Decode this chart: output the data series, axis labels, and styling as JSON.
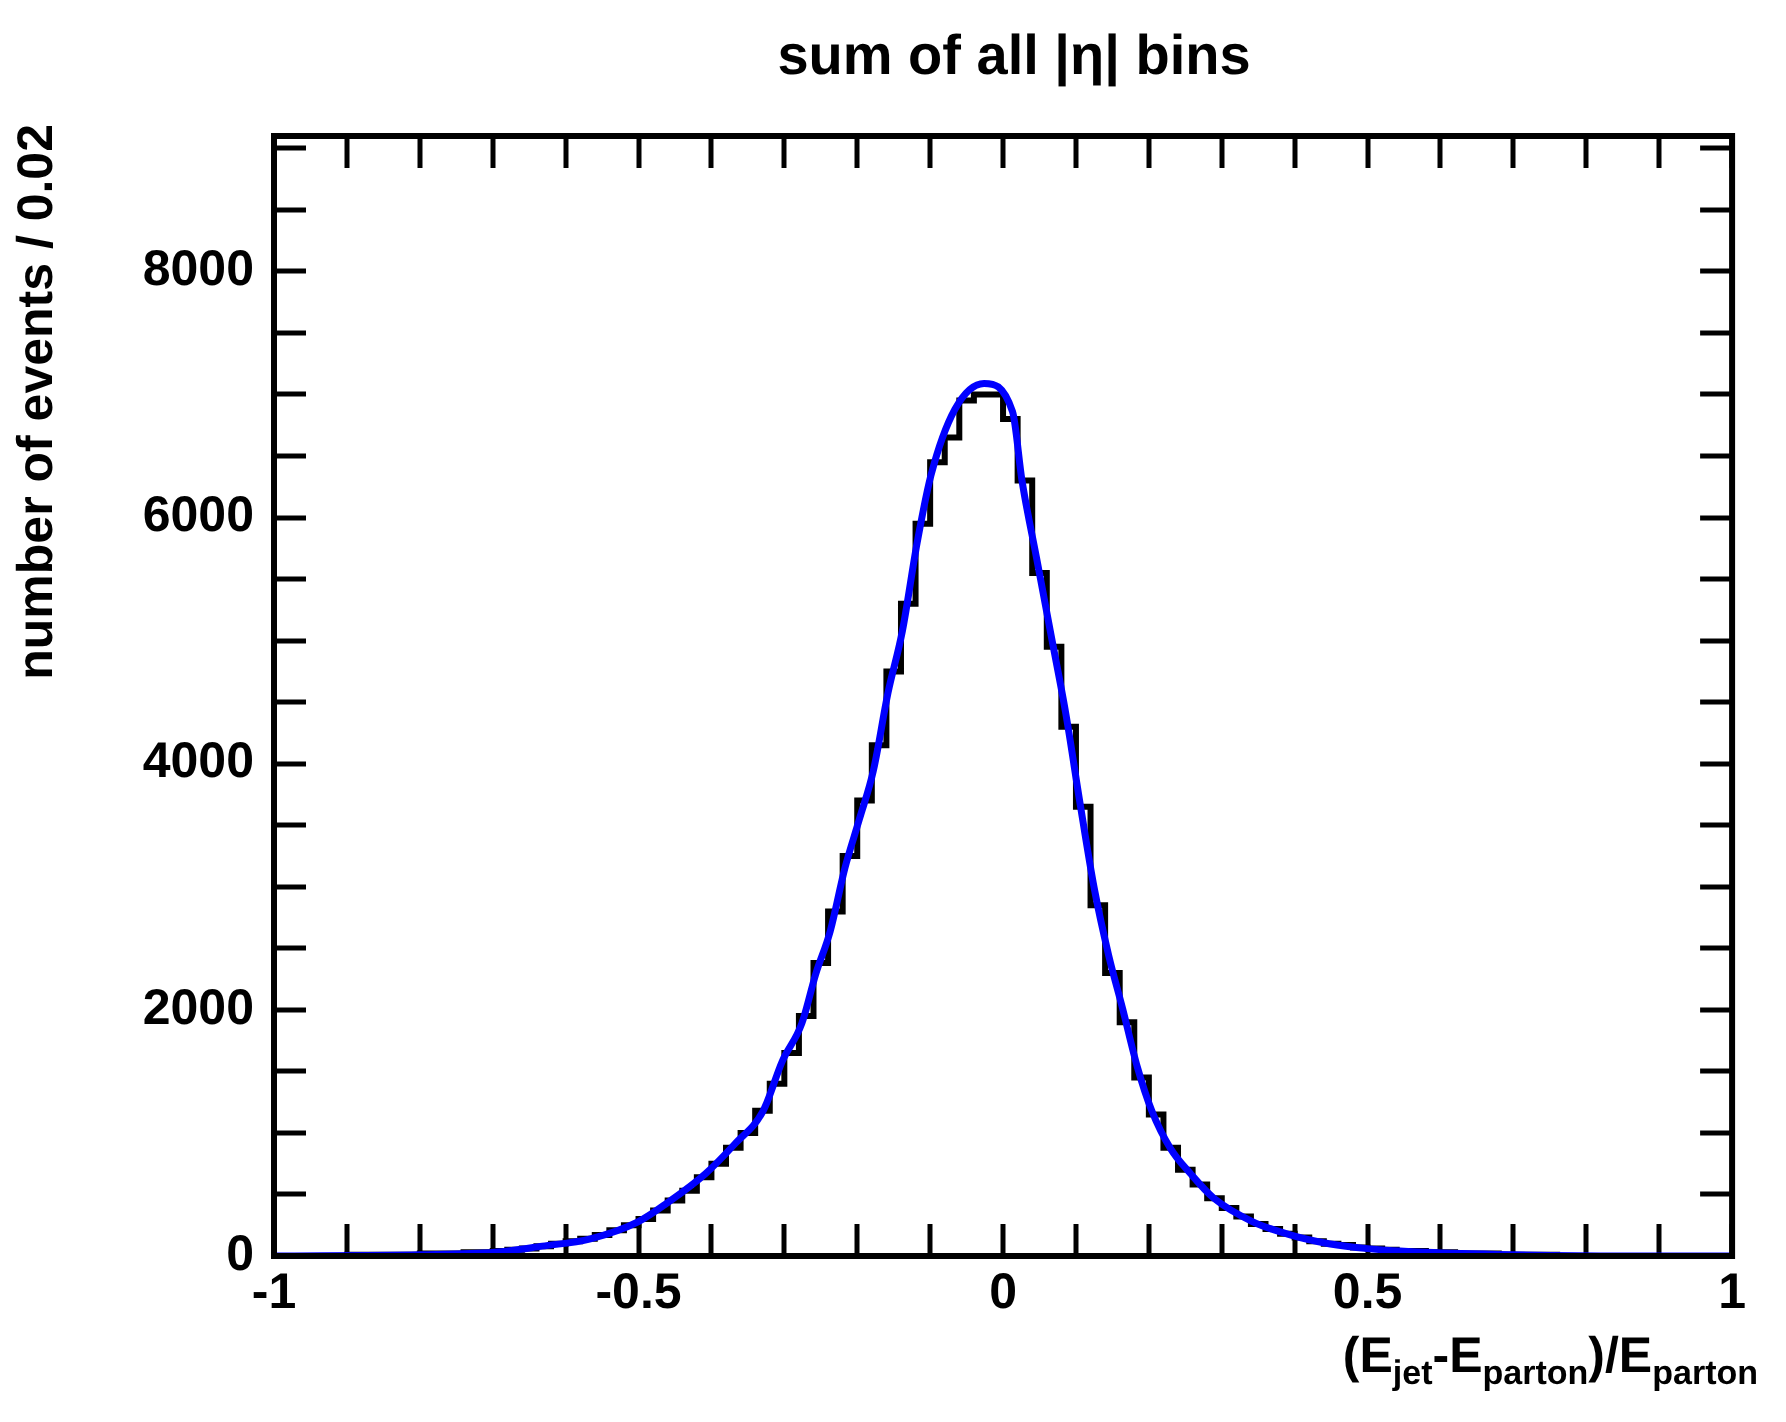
{
  "chart_data": {
    "type": "histogram",
    "title": "sum of all |η| bins",
    "xlabel": "(E$_{jet}$-E$_{parton}$)/E$_{parton}$",
    "ylabel": "number of events / 0.02",
    "bins": [
      -1,
      -0.98,
      -0.96,
      -0.94,
      -0.92,
      -0.9,
      -0.88,
      -0.86,
      -0.84,
      -0.82,
      -0.8,
      -0.78,
      -0.76,
      -0.74,
      -0.72,
      -0.7,
      -0.68,
      -0.66,
      -0.64,
      -0.62,
      -0.6,
      -0.58,
      -0.56,
      -0.54,
      -0.52,
      -0.5,
      -0.48,
      -0.46,
      -0.44,
      -0.42,
      -0.4,
      -0.38,
      -0.36,
      -0.34,
      -0.32,
      -0.3,
      -0.28,
      -0.26,
      -0.24,
      -0.22,
      -0.2,
      -0.18,
      -0.16,
      -0.14,
      -0.12,
      -0.1,
      -0.08,
      -0.06,
      -0.04,
      -0.02,
      0,
      0.02,
      0.04,
      0.06,
      0.08,
      0.1,
      0.12,
      0.14,
      0.16,
      0.18,
      0.2,
      0.22,
      0.24,
      0.26,
      0.28,
      0.3,
      0.32,
      0.34,
      0.36,
      0.38,
      0.4,
      0.42,
      0.44,
      0.46,
      0.48,
      0.5,
      0.52,
      0.54,
      0.56,
      0.58,
      0.6,
      0.62,
      0.64,
      0.66,
      0.68,
      0.7,
      0.72,
      0.74,
      0.76,
      0.78,
      0.8,
      0.82,
      0.84,
      0.86,
      0.88,
      0.9,
      0.92,
      0.94,
      0.96,
      0.98,
      1
    ],
    "series": [
      {
        "type": "histogram",
        "color": "#000000",
        "values": [
          0,
          0,
          0,
          0,
          0,
          10,
          10,
          10,
          10,
          10,
          20,
          20,
          20,
          30,
          30,
          40,
          50,
          60,
          80,
          100,
          120,
          140,
          170,
          210,
          250,
          300,
          370,
          450,
          530,
          640,
          750,
          880,
          1000,
          1180,
          1400,
          1650,
          1950,
          2380,
          2800,
          3250,
          3700,
          4150,
          4750,
          5300,
          5950,
          6450,
          6650,
          6950,
          7000,
          7000,
          6800,
          6300,
          5550,
          4950,
          4300,
          3650,
          2850,
          2300,
          1900,
          1450,
          1150,
          880,
          700,
          580,
          470,
          390,
          320,
          260,
          220,
          180,
          150,
          120,
          100,
          90,
          70,
          60,
          50,
          40,
          40,
          30,
          30,
          20,
          20,
          20,
          10,
          10,
          10,
          10,
          0,
          0,
          0,
          0,
          0,
          0,
          0,
          0,
          0,
          0,
          0,
          0
        ]
      },
      {
        "type": "line",
        "color": "#0000ff",
        "x": [
          -1,
          -0.8,
          -0.697,
          -0.632,
          -0.566,
          -0.5,
          -0.461,
          -0.408,
          -0.368,
          -0.329,
          -0.303,
          -0.276,
          -0.257,
          -0.237,
          -0.217,
          -0.197,
          -0.178,
          -0.158,
          -0.138,
          -0.118,
          -0.099,
          -0.066,
          -0.026,
          0.013,
          0.026,
          0.046,
          0.066,
          0.086,
          0.105,
          0.125,
          0.145,
          0.164,
          0.184,
          0.204,
          0.23,
          0.257,
          0.289,
          0.342,
          0.395,
          0.447,
          0.5,
          0.58,
          0.7,
          0.85,
          1
        ],
        "values": [
          0,
          10,
          30,
          80,
          140,
          280,
          430,
          670,
          910,
          1180,
          1580,
          1890,
          2290,
          2640,
          3150,
          3550,
          3940,
          4570,
          5080,
          5790,
          6340,
          6880,
          7090,
          6860,
          6300,
          5670,
          5040,
          4410,
          3700,
          2990,
          2440,
          2010,
          1540,
          1180,
          870,
          670,
          470,
          280,
          170,
          100,
          60,
          30,
          10,
          0,
          0
        ]
      }
    ],
    "xlim": [
      -1,
      1
    ],
    "ylim": [
      0,
      9100
    ],
    "xticks": [
      -1,
      {
        "value": -0.9,
        "label": null
      },
      {
        "value": -0.8,
        "label": null
      },
      {
        "value": -0.7,
        "label": null
      },
      {
        "value": -0.6,
        "label": null
      },
      -0.5,
      {
        "value": -0.4,
        "label": null
      },
      {
        "value": -0.3,
        "label": null
      },
      {
        "value": -0.2,
        "label": null
      },
      {
        "value": -0.1,
        "label": null
      },
      0,
      {
        "value": 0.1,
        "label": null
      },
      {
        "value": 0.2,
        "label": null
      },
      {
        "value": 0.3,
        "label": null
      },
      {
        "value": 0.4,
        "label": null
      },
      0.5,
      {
        "value": 0.6,
        "label": null
      },
      {
        "value": 0.7,
        "label": null
      },
      {
        "value": 0.8,
        "label": null
      },
      {
        "value": 0.9,
        "label": null
      },
      1
    ],
    "yticks": [
      0,
      {
        "value": 500,
        "label": null
      },
      {
        "value": 1000,
        "label": null
      },
      {
        "value": 1500,
        "label": null
      },
      2000,
      {
        "value": 2500,
        "label": null
      },
      {
        "value": 3000,
        "label": null
      },
      {
        "value": 3500,
        "label": null
      },
      4000,
      {
        "value": 4500,
        "label": null
      },
      {
        "value": 5000,
        "label": null
      },
      {
        "value": 5500,
        "label": null
      },
      6000,
      {
        "value": 6500,
        "label": null
      },
      {
        "value": 7000,
        "label": null
      },
      {
        "value": 7500,
        "label": null
      },
      8000,
      {
        "value": 8500,
        "label": null
      },
      {
        "value": 9000,
        "label": null
      }
    ],
    "grid": false,
    "legend": false
  }
}
